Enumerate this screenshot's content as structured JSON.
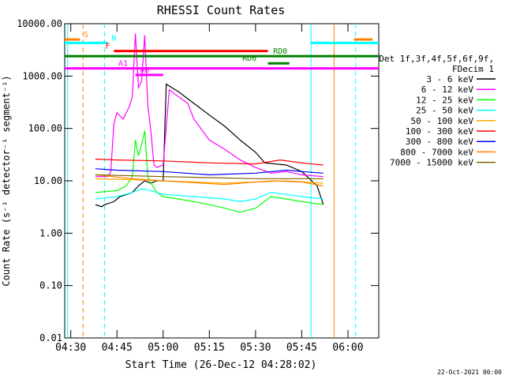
{
  "chart_data": {
    "type": "line",
    "title": "RHESSI Count Rates",
    "xlabel": "Start Time (26-Dec-12 04:28:02)",
    "ylabel": "Count Rate (s⁻¹ detector⁻¹ segment⁻¹)",
    "x_ticks": [
      "04:30",
      "04:45",
      "05:00",
      "05:15",
      "05:30",
      "05:45",
      "06:00"
    ],
    "y_ticks": [
      "0.01",
      "0.10",
      "1.00",
      "10.00",
      "100.00",
      "1000.00",
      "10000.00"
    ],
    "x_range": [
      "04:28:02",
      "06:10:00"
    ],
    "ylim": [
      0.01,
      10000
    ],
    "y_scale": "log",
    "legend_header": [
      "Det 1f,3f,4f,5f,6f,9f,",
      "FDecim 1"
    ],
    "series": [
      {
        "name": "3 - 6 keV",
        "color": "#000000",
        "x": [
          "04:38",
          "04:40",
          "04:41",
          "04:44",
          "04:46",
          "04:50",
          "04:52",
          "04:54",
          "04:56",
          "04:58",
          "05:00",
          "05:01",
          "05:05",
          "05:10",
          "05:15",
          "05:20",
          "05:25",
          "05:30",
          "05:33",
          "05:40",
          "05:45",
          "05:50",
          "05:52"
        ],
        "y": [
          3.5,
          3.2,
          3.5,
          4,
          5,
          6,
          8,
          10,
          9,
          10,
          10,
          700,
          500,
          300,
          180,
          110,
          60,
          35,
          22,
          20,
          15,
          8,
          3.5
        ]
      },
      {
        "name": "6 - 12 keV",
        "color": "#ff00ff",
        "x": [
          "04:38",
          "04:42",
          "04:43",
          "04:44",
          "04:45",
          "04:47",
          "04:49",
          "04:50",
          "04:51",
          "04:52",
          "04:53",
          "04:54",
          "04:55",
          "04:56",
          "04:57",
          "04:58",
          "05:00",
          "05:02",
          "05:05",
          "05:08",
          "05:10",
          "05:15",
          "05:20",
          "05:25",
          "05:30",
          "05:35",
          "05:40",
          "05:45",
          "05:52"
        ],
        "y": [
          12,
          12,
          15,
          120,
          200,
          150,
          260,
          400,
          6500,
          600,
          800,
          6000,
          280,
          90,
          20,
          18,
          20,
          550,
          400,
          300,
          150,
          60,
          40,
          25,
          18,
          14,
          15,
          13,
          12
        ]
      },
      {
        "name": "12 - 25 keV",
        "color": "#00ff00",
        "x": [
          "04:38",
          "04:45",
          "04:48",
          "04:50",
          "04:51",
          "04:52",
          "04:53",
          "04:54",
          "04:55",
          "04:56",
          "04:58",
          "05:00",
          "05:05",
          "05:10",
          "05:15",
          "05:20",
          "05:25",
          "05:30",
          "05:35",
          "05:40",
          "05:45",
          "05:52"
        ],
        "y": [
          6,
          6.5,
          8,
          12,
          60,
          30,
          50,
          90,
          12,
          9,
          6,
          5,
          4.5,
          4,
          3.5,
          3,
          2.5,
          3,
          5,
          4.5,
          4,
          3.5
        ]
      },
      {
        "name": "25 - 50 keV",
        "color": "#00ffff",
        "x": [
          "04:38",
          "04:45",
          "04:50",
          "04:53",
          "04:56",
          "05:00",
          "05:10",
          "05:20",
          "05:25",
          "05:30",
          "05:35",
          "05:40",
          "05:45",
          "05:52"
        ],
        "y": [
          4.5,
          5,
          6,
          7,
          6.5,
          5.5,
          5,
          4.5,
          4,
          4.5,
          6,
          5.5,
          5,
          4.5
        ]
      },
      {
        "name": "50 - 100 keV",
        "color": "#ffaa00",
        "x": [
          "04:38",
          "04:50",
          "05:00",
          "05:20",
          "05:40",
          "05:52"
        ],
        "y": [
          11,
          10.5,
          10,
          9,
          10,
          9
        ]
      },
      {
        "name": "100 - 300 keV",
        "color": "#ff0000",
        "x": [
          "04:38",
          "04:45",
          "05:00",
          "05:15",
          "05:30",
          "05:38",
          "05:45",
          "05:52"
        ],
        "y": [
          26,
          25,
          24,
          22,
          21,
          25,
          22,
          20
        ]
      },
      {
        "name": "300 - 800 keV",
        "color": "#0000ff",
        "x": [
          "04:38",
          "04:45",
          "05:00",
          "05:15",
          "05:30",
          "05:40",
          "05:45",
          "05:52"
        ],
        "y": [
          17,
          16,
          15,
          13,
          14,
          16,
          15,
          14
        ]
      },
      {
        "name": "800 - 7000 keV",
        "color": "#ff8000",
        "x": [
          "04:38",
          "04:50",
          "05:00",
          "05:20",
          "05:35",
          "05:45",
          "05:52"
        ],
        "y": [
          13,
          11,
          10,
          8.5,
          10,
          9.5,
          8
        ]
      },
      {
        "name": "7000 - 15000 keV",
        "color": "#806000",
        "x": [
          "04:38",
          "05:00",
          "05:30",
          "05:52"
        ],
        "y": [
          13,
          12,
          11,
          11
        ]
      }
    ],
    "annotations": {
      "flags": [
        {
          "label": "S",
          "color": "#ff8000",
          "x_start": "04:28:02",
          "x_end": "04:33",
          "y": 5000,
          "label_at": "04:35"
        },
        {
          "label": "N",
          "color": "#00ffff",
          "x_start": "04:28:02",
          "x_end": "04:42",
          "y": 4300,
          "label_at": "04:44"
        },
        {
          "label": "F",
          "color": "#ff0000",
          "x_start": "04:44",
          "x_end": "05:34",
          "y": 3000,
          "label_at": "04:42"
        },
        {
          "label": "RD0",
          "color": "#008000",
          "x_start": "04:28:02",
          "x_end": "06:10:00",
          "y": 2400,
          "label_at": "05:38"
        },
        {
          "label": "RD6",
          "color": "#008000",
          "x_start": "05:34",
          "x_end": "05:41",
          "y": 1750,
          "label_at": "05:28"
        },
        {
          "label": "A1",
          "color": "#ff00ff",
          "x_start": "04:28:02",
          "x_end": "06:10:00",
          "y": 1400,
          "label_at": "04:47"
        },
        {
          "label": "A0",
          "color": "#ff00ff",
          "x_start": "04:51",
          "x_end": "05:00",
          "y": 1050,
          "label_at": "04:54"
        },
        {
          "label": "",
          "color": "#ff8000",
          "x_start": "06:02",
          "x_end": "06:08",
          "y": 5000,
          "label_at": "06:02"
        },
        {
          "label": "",
          "color": "#00ffff",
          "x_start": "05:48",
          "x_end": "06:10:00",
          "y": 4300,
          "label_at": "05:48"
        }
      ],
      "vlines": [
        {
          "x": "04:29",
          "color": "#00ffff",
          "dashed": false
        },
        {
          "x": "04:34",
          "color": "#ff8000",
          "dashed": true
        },
        {
          "x": "04:41",
          "color": "#00ffff",
          "dashed": true
        },
        {
          "x": "05:48",
          "color": "#00ffff",
          "dashed": false
        },
        {
          "x": "05:55:30",
          "color": "#ff8000",
          "dashed": false
        },
        {
          "x": "06:02:30",
          "color": "#00ffff",
          "dashed": true
        }
      ]
    },
    "grid": false,
    "legend_position": "right"
  },
  "footer_timestamp": "22-Oct-2021 00:00"
}
